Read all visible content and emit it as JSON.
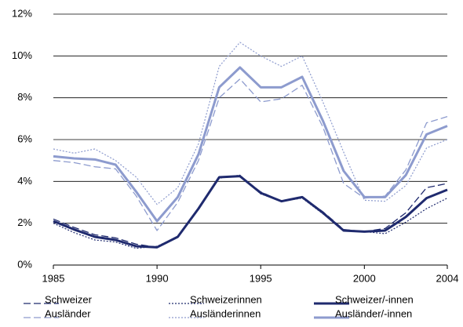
{
  "chart_data": {
    "type": "line",
    "x": [
      1985,
      1986,
      1987,
      1988,
      1989,
      1990,
      1991,
      1992,
      1993,
      1994,
      1995,
      1996,
      1997,
      1998,
      1999,
      2000,
      2001,
      2002,
      2003,
      2004
    ],
    "xlim": [
      1985,
      2004
    ],
    "xticks": [
      1985,
      1990,
      1995,
      2000,
      2004
    ],
    "ylim": [
      0,
      12
    ],
    "yticks": [
      {
        "value": 0,
        "label": "0%"
      },
      {
        "value": 2,
        "label": "2%"
      },
      {
        "value": 4,
        "label": "4%"
      },
      {
        "value": 6,
        "label": "6%"
      },
      {
        "value": 8,
        "label": "8%"
      },
      {
        "value": 10,
        "label": "10%"
      },
      {
        "value": 12,
        "label": "12%"
      }
    ],
    "grid": true,
    "legend": "bottom",
    "series": [
      {
        "name": "Schweizer",
        "color": "#1f2a6e",
        "style": "dashed",
        "values": [
          2.2,
          1.8,
          1.45,
          1.3,
          1.0,
          0.85,
          1.35,
          2.7,
          4.2,
          4.25,
          3.5,
          3.05,
          3.25,
          2.55,
          1.7,
          1.6,
          1.75,
          2.5,
          3.7,
          3.9
        ]
      },
      {
        "name": "Schweizerinnen",
        "color": "#1f2a6e",
        "style": "dotted",
        "values": [
          2.0,
          1.55,
          1.2,
          1.1,
          0.8,
          0.9,
          1.35,
          2.7,
          4.15,
          4.3,
          3.4,
          3.05,
          3.2,
          2.45,
          1.65,
          1.6,
          1.5,
          2.05,
          2.7,
          3.2
        ]
      },
      {
        "name": "Schweizer/-innen",
        "color": "#1f2a6e",
        "style": "solid",
        "values": [
          2.1,
          1.7,
          1.35,
          1.2,
          0.9,
          0.85,
          1.35,
          2.7,
          4.2,
          4.25,
          3.45,
          3.05,
          3.25,
          2.5,
          1.65,
          1.6,
          1.65,
          2.3,
          3.2,
          3.6
        ]
      },
      {
        "name": "Ausländer",
        "color": "#8d9bce",
        "style": "dashed",
        "values": [
          5.0,
          4.9,
          4.7,
          4.6,
          3.3,
          1.65,
          3.0,
          5.0,
          8.0,
          8.9,
          7.8,
          7.95,
          8.6,
          6.6,
          3.9,
          3.2,
          3.3,
          4.55,
          6.8,
          7.1
        ]
      },
      {
        "name": "Ausländerinnen",
        "color": "#8d9bce",
        "style": "dotted",
        "values": [
          5.55,
          5.35,
          5.55,
          5.0,
          4.2,
          2.9,
          3.7,
          5.8,
          9.5,
          10.65,
          10.0,
          9.5,
          10.0,
          7.8,
          5.4,
          3.1,
          3.05,
          3.8,
          5.6,
          6.0
        ]
      },
      {
        "name": "Ausländer/-innen",
        "color": "#8d9bce",
        "style": "solid",
        "values": [
          5.2,
          5.1,
          5.05,
          4.8,
          3.5,
          2.1,
          3.25,
          5.3,
          8.5,
          9.45,
          8.5,
          8.5,
          9.0,
          6.9,
          4.5,
          3.25,
          3.25,
          4.3,
          6.25,
          6.65
        ]
      }
    ]
  }
}
